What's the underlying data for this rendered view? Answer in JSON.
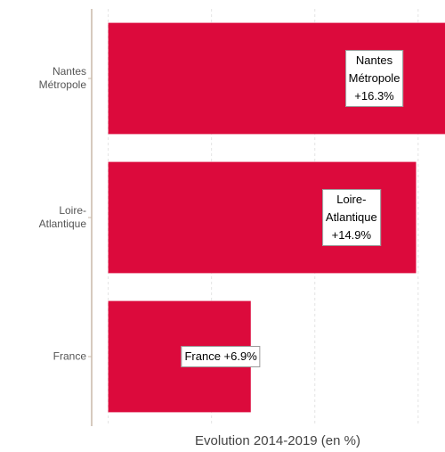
{
  "chart_data": {
    "type": "bar",
    "orientation": "horizontal",
    "categories": [
      "Nantes\nMétropole",
      "Loire-\nAtlantique",
      "France"
    ],
    "values": [
      16.3,
      14.9,
      6.9
    ],
    "value_labels": [
      "Nantes\nMétropole\n+16.3%",
      "Loire-\nAtlantique\n+14.9%",
      "France +6.9%"
    ],
    "color": "#dc0a3c",
    "x_label": "Evolution 2014-2019 (en %)",
    "xlim": [
      -0.8,
      16.3
    ],
    "xticks": [
      0,
      5,
      10,
      15
    ],
    "grid": true
  }
}
